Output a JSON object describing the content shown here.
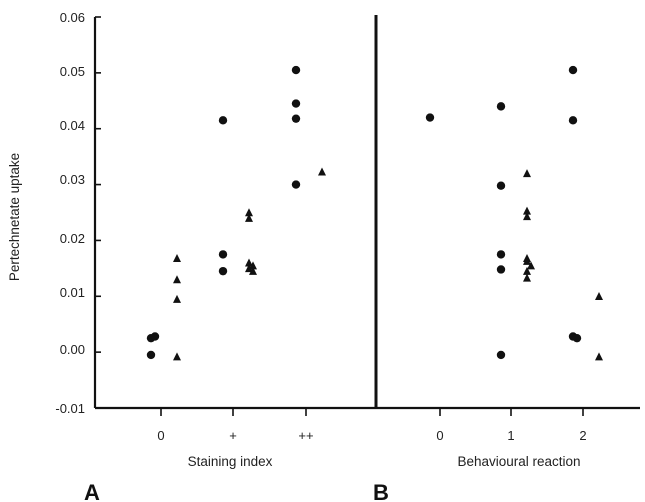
{
  "chart_data": [
    {
      "type": "scatter",
      "panel": "A",
      "ylabel": "Pertechnetate uptake",
      "xlabel": "Staining index",
      "categories": [
        "0",
        "+",
        "++"
      ],
      "ylim": [
        -0.01,
        0.06
      ],
      "yticks": [
        "0.06",
        "0.05",
        "0.04",
        "0.03",
        "0.02",
        "0.01",
        "0.00",
        "-0.01"
      ],
      "series": [
        {
          "marker": "circle",
          "points": [
            {
              "category": "0",
              "y": 0.0025
            },
            {
              "category": "0",
              "y": 0.0028
            },
            {
              "category": "0",
              "y": -0.0005
            },
            {
              "category": "+",
              "y": 0.0415
            },
            {
              "category": "+",
              "y": 0.0175
            },
            {
              "category": "+",
              "y": 0.0145
            },
            {
              "category": "++",
              "y": 0.0505
            },
            {
              "category": "++",
              "y": 0.0445
            },
            {
              "category": "++",
              "y": 0.0418
            },
            {
              "category": "++",
              "y": 0.03
            }
          ]
        },
        {
          "marker": "triangle",
          "points": [
            {
              "category": "0",
              "y": 0.0168
            },
            {
              "category": "0",
              "y": 0.013
            },
            {
              "category": "0",
              "y": 0.0095
            },
            {
              "category": "0",
              "y": -0.0008
            },
            {
              "category": "+",
              "y": 0.025
            },
            {
              "category": "+",
              "y": 0.024
            },
            {
              "category": "+",
              "y": 0.016
            },
            {
              "category": "+",
              "y": 0.0155
            },
            {
              "category": "+",
              "y": 0.015
            },
            {
              "category": "+",
              "y": 0.0145
            },
            {
              "category": "++",
              "y": 0.0323
            }
          ]
        }
      ]
    },
    {
      "type": "scatter",
      "panel": "B",
      "xlabel": "Behavioural reaction",
      "categories": [
        "0",
        "1",
        "2"
      ],
      "ylim": [
        -0.01,
        0.06
      ],
      "series": [
        {
          "marker": "circle",
          "points": [
            {
              "category": "0",
              "y": 0.042
            },
            {
              "category": "1",
              "y": 0.044
            },
            {
              "category": "1",
              "y": 0.0298
            },
            {
              "category": "1",
              "y": 0.0175
            },
            {
              "category": "1",
              "y": 0.0148
            },
            {
              "category": "1",
              "y": -0.0005
            },
            {
              "category": "2",
              "y": 0.0505
            },
            {
              "category": "2",
              "y": 0.0415
            },
            {
              "category": "2",
              "y": 0.0028
            },
            {
              "category": "2",
              "y": 0.0025
            }
          ]
        },
        {
          "marker": "triangle",
          "points": [
            {
              "category": "1",
              "y": 0.032
            },
            {
              "category": "1",
              "y": 0.0253
            },
            {
              "category": "1",
              "y": 0.0243
            },
            {
              "category": "1",
              "y": 0.0168
            },
            {
              "category": "1",
              "y": 0.0163
            },
            {
              "category": "1",
              "y": 0.0155
            },
            {
              "category": "1",
              "y": 0.0145
            },
            {
              "category": "1",
              "y": 0.0133
            },
            {
              "category": "2",
              "y": 0.01
            },
            {
              "category": "2",
              "y": -0.0008
            }
          ]
        }
      ]
    }
  ]
}
